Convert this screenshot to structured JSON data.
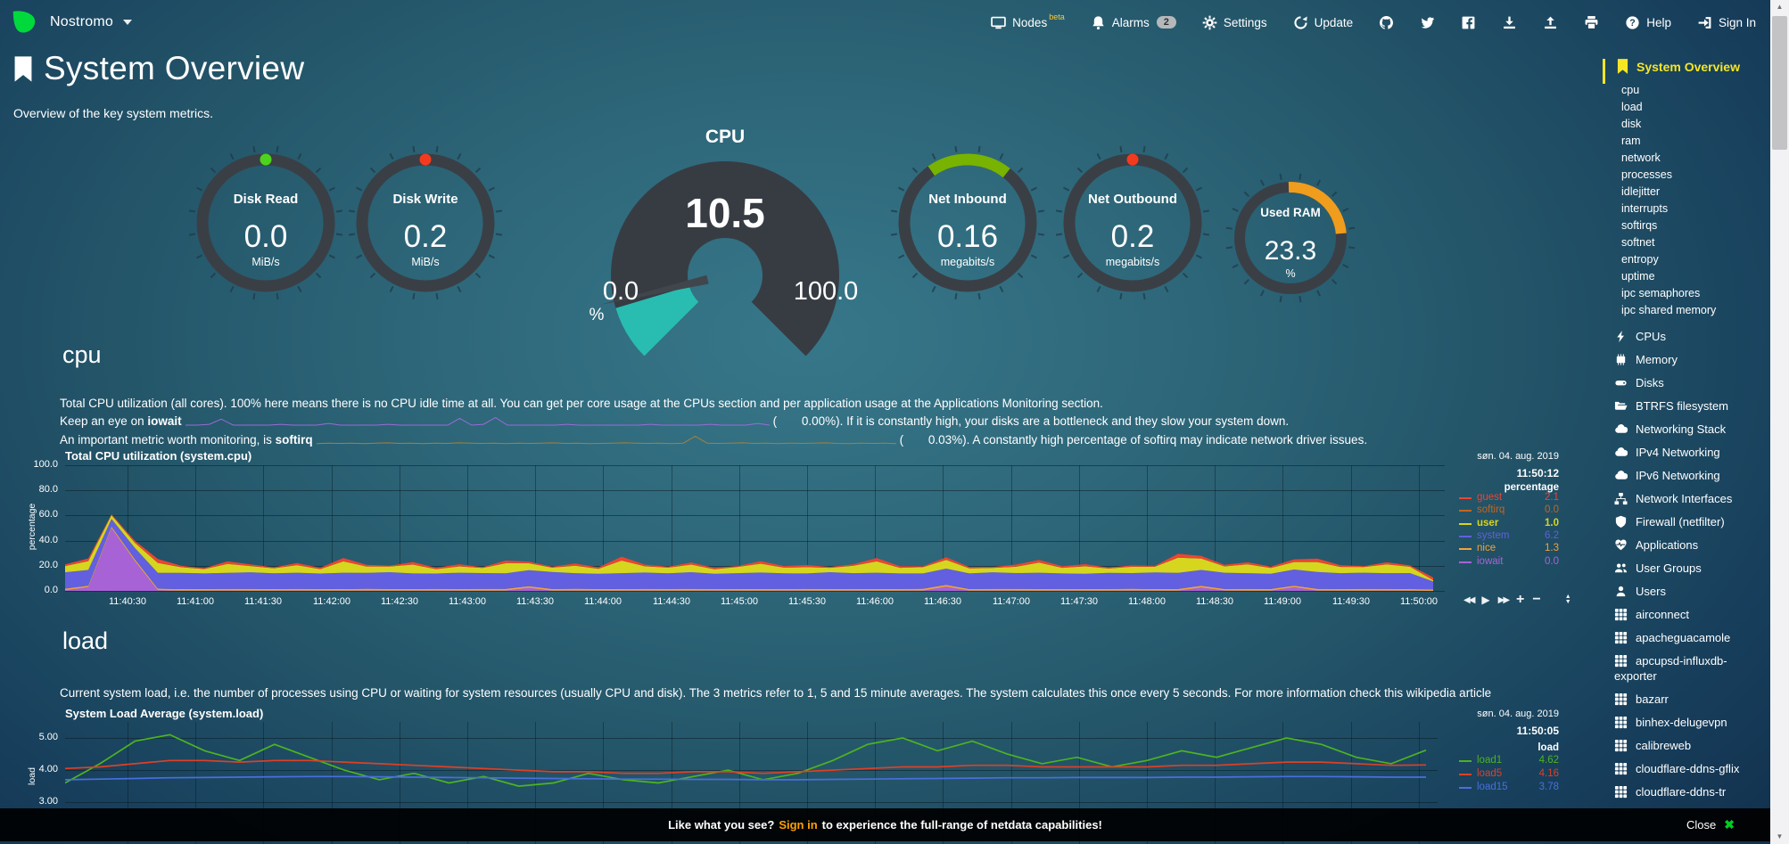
{
  "navbar": {
    "hostname": "Nostromo",
    "logo_icon": "netdata-logo",
    "caret_icon": "chevron-down-icon",
    "items": [
      {
        "id": "nodes",
        "label": "Nodes",
        "icon": "monitor-icon",
        "sup": "beta"
      },
      {
        "id": "alarms",
        "label": "Alarms",
        "icon": "bell-icon",
        "badge": "2"
      },
      {
        "id": "settings",
        "label": "Settings",
        "icon": "gear-icon"
      },
      {
        "id": "update",
        "label": "Update",
        "icon": "refresh-icon"
      },
      {
        "id": "github",
        "icon": "github-icon"
      },
      {
        "id": "twitter",
        "icon": "twitter-icon"
      },
      {
        "id": "facebook",
        "icon": "facebook-icon"
      },
      {
        "id": "export-snapshot",
        "icon": "download-icon"
      },
      {
        "id": "import-snapshot",
        "icon": "upload-icon"
      },
      {
        "id": "print",
        "icon": "print-icon"
      },
      {
        "id": "help",
        "label": "Help",
        "icon": "help-icon"
      },
      {
        "id": "signin",
        "label": "Sign In",
        "icon": "signin-icon"
      }
    ]
  },
  "header": {
    "icon": "bookmark-icon",
    "title": "System Overview",
    "subtitle": "Overview of the key system metrics."
  },
  "gauges": [
    {
      "type": "ring",
      "name": "Disk Read",
      "value": "0.0",
      "unit": "MiB/s",
      "indicator": "dot",
      "indicator_color": "#4bd41b"
    },
    {
      "type": "ring",
      "name": "Disk Write",
      "value": "0.2",
      "unit": "MiB/s",
      "indicator": "dot",
      "indicator_color": "#f43a1e"
    },
    {
      "type": "speedometer",
      "name": "CPU",
      "value": "10.5",
      "min_label": "0.0",
      "max_label": "100.0",
      "unit": "%",
      "value_percent": 10.5,
      "fill_color": "#28bdb0",
      "body_color": "#373c43"
    },
    {
      "type": "ring",
      "name": "Net Inbound",
      "value": "0.16",
      "unit": "megabits/s",
      "indicator": "arc",
      "indicator_color": "#77b300"
    },
    {
      "type": "ring",
      "name": "Net Outbound",
      "value": "0.2",
      "unit": "megabits/s",
      "indicator": "dot",
      "indicator_color": "#f43a1e"
    },
    {
      "type": "ring",
      "name": "Used RAM",
      "value": "23.3",
      "unit": "%",
      "indicator": "arc",
      "indicator_color": "#f09c1c",
      "small": true
    }
  ],
  "cpu_section": {
    "heading": "cpu",
    "line1": "Total CPU utilization (all cores). 100% here means there is no CPU idle time at all. You can get per core usage at the CPUs section and per application usage at the Applications Monitoring section.",
    "line2_pre": "Keep an eye on ",
    "line2_bold": "iowait",
    "line2_paren_open": "(",
    "line2_value": "0.00%",
    "line2_post": "). If it is constantly high, your disks are a bottleneck and they slow your system down.",
    "line3_pre": "An important metric worth monitoring, is ",
    "line3_bold": "softirq",
    "line3_paren_open": "(",
    "line3_value": "0.03%",
    "line3_post": "). A constantly high percentage of softirq may indicate network driver issues.",
    "iowait_spark_color": "#9a6bd8",
    "softirq_spark_color": "#a5803a",
    "iowait_spark": [
      0.1,
      0.1,
      0.2,
      0.8,
      0.1,
      0.1,
      0.1,
      0.1,
      0.2,
      0.1,
      0.1,
      0.1,
      0.3,
      0.1,
      0.1,
      0.1,
      0.1,
      0.2,
      0.1,
      0.1,
      0.1,
      0.1,
      0.1,
      0.9,
      0.1,
      0.2,
      1,
      0.1,
      0.1,
      0.1,
      0.1,
      0.1,
      0.2,
      0.1,
      0.1,
      0.1,
      0.1,
      0.1,
      0.1,
      0.2,
      0.1,
      0.1,
      0.1,
      0.1,
      0.2,
      0.1,
      0.1,
      0.1,
      0.3,
      0.1
    ],
    "softirq_spark": [
      0.2,
      0.3,
      0.25,
      0.3,
      0.2,
      0.3,
      0.35,
      0.25,
      0.3,
      0.2,
      0.3,
      0.25,
      0.35,
      0.3,
      0.25,
      0.3,
      0.2,
      0.3,
      0.25,
      0.3,
      0.35,
      0.25,
      0.3,
      0.2,
      0.25,
      0.3,
      0.35,
      0.3,
      0.25,
      0.3,
      0.2,
      0.3,
      1.6,
      0.3,
      0.25,
      0.3,
      0.35,
      0.25,
      0.3,
      0.2,
      0.3,
      0.25,
      0.3,
      0.35,
      0.25,
      0.2,
      0.3,
      0.25,
      0.3,
      0.2
    ]
  },
  "load_section": {
    "heading": "load",
    "line1": "Current system load, i.e. the number of processes using CPU or waiting for system resources (usually CPU and disk). The 3 metrics refer to 1, 5 and 15 minute averages. The system calculates this once every 5 seconds. For more information check this wikipedia article"
  },
  "chart_toolbar": [
    "skip-backward",
    "play",
    "skip-forward",
    "zoom-in",
    "zoom-out",
    "resize-handle"
  ],
  "chart_data": [
    {
      "type": "area",
      "stacked": true,
      "title": "Total CPU utilization (system.cpu)",
      "date": "søn. 04. aug. 2019",
      "time": "11:50:12",
      "units": "percentage",
      "ylabel": "percentage",
      "ylim": [
        0,
        100
      ],
      "grid": true,
      "legend_position": "right",
      "yticks": [
        {
          "v": 100,
          "label": "100.0"
        },
        {
          "v": 80,
          "label": "80.0"
        },
        {
          "v": 60,
          "label": "60.0"
        },
        {
          "v": 40,
          "label": "40.0"
        },
        {
          "v": 20,
          "label": "20.0"
        },
        {
          "v": 0,
          "label": "0.0"
        }
      ],
      "xticks": [
        "11:40:30",
        "11:41:00",
        "11:41:30",
        "11:42:00",
        "11:42:30",
        "11:43:00",
        "11:43:30",
        "11:44:00",
        "11:44:30",
        "11:45:00",
        "11:45:30",
        "11:46:00",
        "11:46:30",
        "11:47:00",
        "11:47:30",
        "11:48:00",
        "11:48:30",
        "11:49:00",
        "11:49:30",
        "11:50:00"
      ],
      "stack_order": [
        "iowait",
        "nice",
        "system",
        "user",
        "softirq",
        "guest"
      ],
      "legend_order": [
        "guest",
        "softirq",
        "user",
        "system",
        "nice",
        "iowait"
      ],
      "series": [
        {
          "name": "guest",
          "color": "#ef4430",
          "legend_value": "2.1",
          "values": [
            1.2,
            2,
            0.6,
            1.5,
            3,
            1,
            0.6,
            2,
            1.2,
            0.6,
            1.6,
            1,
            2.6,
            1.2,
            0.6,
            2,
            1,
            1.6,
            0.6,
            2,
            1.2,
            0.6,
            1.6,
            1,
            3,
            1.2,
            0.6,
            1.6,
            1,
            0.6,
            2,
            1.2,
            1.6,
            0.6,
            1,
            2.6,
            1.2,
            0.6,
            2,
            1,
            0.6,
            1.6,
            2,
            1.2,
            1.6,
            0.6,
            1,
            0.6,
            3,
            2,
            1.2,
            1.6,
            1,
            2,
            2.6,
            1.2,
            0.6,
            1.6,
            1,
            2.1
          ]
        },
        {
          "name": "softir q",
          "color": "#c4661e",
          "legend_value": "0.0",
          "values": [
            0.1,
            0.1,
            0.1,
            0.1,
            0.1,
            0.1,
            0.1,
            0.1,
            0.1,
            0.1,
            0.1,
            0.1,
            0.1,
            0.1,
            0.1,
            0.1,
            0.1,
            0.1,
            0.1,
            0.1,
            0.1,
            0.1,
            0.1,
            0.1,
            0.1,
            0.1,
            0.1,
            0.1,
            0.1,
            0.1,
            0.1,
            0.1,
            0.1,
            0.1,
            0.1,
            0.1,
            0.1,
            0.1,
            0.1,
            0.1,
            0.1,
            0.1,
            0.1,
            0.1,
            0.1,
            0.1,
            0.1,
            0.1,
            0.1,
            0.1,
            0.1,
            0.1,
            0.1,
            0.1,
            0.1,
            0.1,
            0.1,
            0.1,
            0.1,
            0.1
          ]
        },
        {
          "name": "user",
          "color": "#d6d61e",
          "legend_value": "1.0",
          "legend_bold": true,
          "values": [
            5,
            7,
            3,
            4,
            8,
            4.5,
            3.5,
            7,
            5,
            4,
            6,
            3.5,
            9,
            5,
            4.5,
            7,
            3.5,
            5,
            4,
            8,
            5.5,
            3.5,
            6,
            4,
            10,
            5,
            4.5,
            6,
            3.5,
            5,
            7,
            4.5,
            5,
            3.5,
            6,
            9,
            4.5,
            5,
            7,
            4,
            3.5,
            5,
            8,
            4.5,
            6,
            3.5,
            5,
            4.5,
            12,
            9,
            5,
            7,
            4.5,
            6,
            8,
            5,
            4.5,
            7,
            5,
            1
          ]
        },
        {
          "name": "system",
          "color": "#625fe0",
          "legend_value": "6.2",
          "values": [
            13,
            12.5,
            6,
            9,
            12.5,
            13,
            12.4,
            12.8,
            13.2,
            12.6,
            12.9,
            12.3,
            13.1,
            12.7,
            13.4,
            12.5,
            12.2,
            13,
            12.6,
            12.4,
            12.8,
            13.5,
            12.4,
            12.1,
            12.7,
            13,
            12.5,
            13.3,
            12.2,
            12.6,
            13.1,
            12.5,
            12.3,
            13.4,
            12.6,
            13,
            12.4,
            12.2,
            12.9,
            12.5,
            13.2,
            12.6,
            13,
            12.4,
            12.1,
            12.8,
            12.5,
            13.3,
            12.9,
            12.6,
            13,
            12.5,
            12.2,
            12.8,
            13.4,
            12.6,
            12.9,
            12.5,
            12.8,
            6.2
          ]
        },
        {
          "name": "nice",
          "color": "#f2a33c",
          "legend_value": "1.3",
          "values": [
            1.3,
            1.2,
            1.3,
            1.4,
            1.3,
            1.2,
            1.3,
            1.3,
            1.4,
            1.2,
            1.3,
            1.3,
            1.2,
            1.4,
            1.3,
            1.2,
            1.3,
            1.3,
            1.4,
            1.3,
            1.2,
            1.3,
            1.4,
            1.3,
            1.2,
            1.3,
            1.3,
            1.4,
            1.2,
            1.3,
            1.3,
            1.2,
            1.4,
            1.3,
            1.2,
            1.3,
            1.3,
            1.4,
            1.3,
            1.2,
            1.3,
            1.4,
            1.3,
            1.2,
            1.3,
            1.3,
            1.4,
            1.2,
            1.3,
            1.3,
            1.2,
            1.4,
            1.3,
            1.2,
            1.3,
            1.3,
            1.4,
            1.3,
            1.2,
            1.3
          ]
        },
        {
          "name": "iowait",
          "color": "#a763d6",
          "legend_value": "0.0",
          "values": [
            0.5,
            3,
            50,
            24,
            0.5,
            0.2,
            0.2,
            0.3,
            0.2,
            0.2,
            0.3,
            0.2,
            0.2,
            0.3,
            0.2,
            0.2,
            0.3,
            0.2,
            0.2,
            0.3,
            2.5,
            0.2,
            0.3,
            0.2,
            0.2,
            0.3,
            0.2,
            0.2,
            0.3,
            0.2,
            0.2,
            0.3,
            0.2,
            0.2,
            0.3,
            0.2,
            0.2,
            0.3,
            3.5,
            0.2,
            0.3,
            0.2,
            0.2,
            0.3,
            0.2,
            0.2,
            0.3,
            0.2,
            0.2,
            2.8,
            0.3,
            0.2,
            0.2,
            3,
            0.3,
            0.2,
            0.2,
            0.3,
            0.2,
            0
          ]
        }
      ]
    },
    {
      "type": "line",
      "stacked": false,
      "title": "System Load Average (system.load)",
      "date": "søn. 04. aug. 2019",
      "time": "11:50:05",
      "units": "load",
      "ylabel": "load",
      "ylim": [
        1.7,
        5.5
      ],
      "grid": true,
      "legend_position": "right",
      "yticks": [
        {
          "v": 5,
          "label": "5.00"
        },
        {
          "v": 4,
          "label": "4.00"
        },
        {
          "v": 3,
          "label": "3.00"
        }
      ],
      "xticks": [],
      "legend_order": [
        "load1",
        "load5",
        "load15"
      ],
      "series": [
        {
          "name": "load1",
          "color": "#4db320",
          "legend_value": "4.62",
          "values": [
            3.6,
            4.2,
            4.9,
            5.1,
            4.6,
            4.3,
            4.8,
            4.4,
            4.0,
            3.7,
            3.9,
            3.6,
            3.8,
            3.5,
            3.6,
            3.9,
            3.7,
            3.6,
            3.8,
            4.0,
            3.7,
            3.9,
            4.3,
            4.8,
            5.0,
            4.6,
            4.9,
            4.5,
            4.2,
            4.4,
            4.1,
            4.3,
            4.6,
            4.4,
            4.7,
            5.0,
            4.8,
            4.4,
            4.2,
            4.62
          ]
        },
        {
          "name": "load5",
          "color": "#dd4126",
          "legend_value": "4.16",
          "values": [
            4.05,
            4.1,
            4.2,
            4.3,
            4.3,
            4.25,
            4.3,
            4.3,
            4.25,
            4.2,
            4.15,
            4.1,
            4.05,
            4.0,
            3.95,
            3.95,
            3.9,
            3.9,
            3.95,
            3.95,
            3.9,
            3.95,
            4.0,
            4.05,
            4.1,
            4.1,
            4.15,
            4.15,
            4.1,
            4.1,
            4.1,
            4.1,
            4.15,
            4.15,
            4.2,
            4.25,
            4.25,
            4.2,
            4.15,
            4.16
          ]
        },
        {
          "name": "load15",
          "color": "#4a6fdc",
          "legend_value": "3.78",
          "values": [
            3.7,
            3.72,
            3.74,
            3.76,
            3.77,
            3.78,
            3.79,
            3.8,
            3.8,
            3.79,
            3.78,
            3.77,
            3.76,
            3.75,
            3.74,
            3.73,
            3.72,
            3.72,
            3.71,
            3.71,
            3.7,
            3.7,
            3.71,
            3.72,
            3.73,
            3.74,
            3.75,
            3.76,
            3.76,
            3.77,
            3.77,
            3.77,
            3.78,
            3.78,
            3.79,
            3.8,
            3.8,
            3.79,
            3.78,
            3.78
          ]
        }
      ]
    }
  ],
  "sidebar": {
    "active": {
      "label": "System Overview",
      "icon": "bookmark-icon"
    },
    "subitems": [
      "cpu",
      "load",
      "disk",
      "ram",
      "network",
      "processes",
      "idlejitter",
      "interrupts",
      "softirqs",
      "softnet",
      "entropy",
      "uptime",
      "ipc semaphores",
      "ipc shared memory"
    ],
    "sections": [
      {
        "label": "CPUs",
        "icon": "bolt-icon"
      },
      {
        "label": "Memory",
        "icon": "memory-icon"
      },
      {
        "label": "Disks",
        "icon": "hdd-icon"
      },
      {
        "label": "BTRFS filesystem",
        "icon": "folder-icon"
      },
      {
        "label": "Networking Stack",
        "icon": "cloud-icon"
      },
      {
        "label": "IPv4 Networking",
        "icon": "cloud-icon"
      },
      {
        "label": "IPv6 Networking",
        "icon": "cloud-icon"
      },
      {
        "label": "Network Interfaces",
        "icon": "sitemap-icon"
      },
      {
        "label": "Firewall (netfilter)",
        "icon": "shield-icon"
      },
      {
        "label": "Applications",
        "icon": "heartbeat-icon"
      },
      {
        "label": "User Groups",
        "icon": "users-icon"
      },
      {
        "label": "Users",
        "icon": "user-icon"
      },
      {
        "label": "airconnect",
        "icon": "grid-icon"
      },
      {
        "label": "apacheguacamole",
        "icon": "grid-icon"
      },
      {
        "label": "apcupsd-influxdb-exporter",
        "icon": "grid-icon"
      },
      {
        "label": "bazarr",
        "icon": "grid-icon"
      },
      {
        "label": "binhex-delugevpn",
        "icon": "grid-icon"
      },
      {
        "label": "calibreweb",
        "icon": "grid-icon"
      },
      {
        "label": "cloudflare-ddns-gflix",
        "icon": "grid-icon"
      },
      {
        "label": "cloudflare-ddns-tr",
        "icon": "grid-icon"
      }
    ]
  },
  "bottom_bar": {
    "prefix": "Like what you see?",
    "signin_label": "Sign in",
    "suffix": "to experience the full-range of netdata capabilities!",
    "close_label": "Close",
    "close_icon_glyph": "✖",
    "signin_color": "#ffa000",
    "close_icon_color": "#00cc22"
  }
}
